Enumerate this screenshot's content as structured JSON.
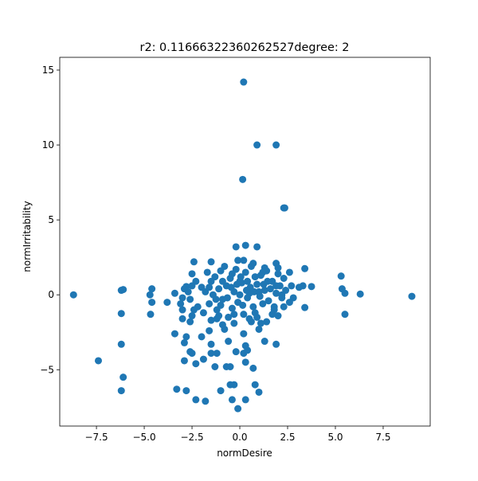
{
  "chart_data": {
    "type": "scatter",
    "title": "r2: 0.11666322360262527degree: 2",
    "x_label": "normDesire",
    "y_label": "normIrritability",
    "color": "#1f77b4",
    "x": [
      -8.7,
      -7.4,
      -6.2,
      -6.1,
      -6.2,
      -6.2,
      -6.1,
      -6.2,
      0.2,
      0.9,
      1.9,
      0.15,
      2.3,
      2.35,
      9,
      6.3,
      5.3,
      5.35,
      5.5,
      5.5,
      3.4,
      3.4,
      3.75,
      3.3,
      -4.6,
      -4.7,
      -4.6,
      -3.8,
      -4.67,
      -3.4,
      -3.3,
      -2.8,
      -2.3,
      -1.8,
      -1,
      -0.5,
      -0.3,
      -0.4,
      -0.1,
      0.3,
      0.8,
      1,
      0.7,
      0.3,
      -1.3,
      -0.5,
      -0.7,
      -2.3,
      -1.9,
      -2.9,
      -2.6,
      -2.5,
      -1.2,
      -1.5,
      -0.2,
      0.2,
      0.4,
      1.3,
      1.9,
      0.3,
      -0.6,
      -1.5,
      -2.9,
      -2.8,
      -2,
      -1.6,
      -0.8,
      0.2,
      1,
      -2.6,
      -3,
      -0.3,
      0.6,
      1.4,
      -1.2,
      -3,
      -2.5,
      -3.4,
      -2.8,
      -2.5,
      -2.4,
      -1.5,
      -0.2,
      0.3,
      0.9,
      -0.1,
      0.2,
      0.7,
      1.9,
      2,
      1.3,
      2.6,
      3.1,
      2.8,
      2.2,
      2.3,
      1.8,
      2,
      -2,
      -1.8,
      -1.5,
      -1.3,
      -1.1,
      -0.9,
      -0.7,
      -0.5,
      -0.3,
      -0.1,
      0.1,
      0.3,
      0.5,
      0.7,
      0.9,
      1.1,
      1.3,
      1.5,
      1.7,
      1.9,
      2.1,
      2.3,
      -2.2,
      -1.9,
      -1.6,
      -1.4,
      -1.2,
      -1,
      -0.8,
      -0.6,
      -0.4,
      -0.2,
      0,
      0.2,
      0.4,
      0.6,
      0.8,
      1,
      1.2,
      1.4,
      1.6,
      1.8,
      2,
      2.4,
      -2.7,
      -2.6,
      -2.3,
      -1.7,
      -0.9,
      -0.45,
      0.05,
      0.15,
      0.55,
      1.05,
      1.45,
      1.25,
      -0.15,
      -0.65,
      0.35,
      0.75,
      -1.25,
      -2.9,
      -3,
      -3.1,
      2.7,
      2.6,
      -1.5,
      -0.9,
      0.5,
      1.1,
      -0.3,
      1.7,
      -1.1,
      0.9,
      -1.6,
      0,
      0.4,
      0.8,
      1.2,
      -0.4,
      -1,
      -2.4,
      -2.5,
      1.9,
      2.2
    ],
    "values": [
      0,
      -4.4,
      0.3,
      0.35,
      -1.25,
      -3.3,
      -5.5,
      -6.4,
      14.2,
      10,
      10,
      7.7,
      5.8,
      5.8,
      -0.1,
      0.05,
      1.25,
      0.4,
      0.1,
      -1.3,
      1.75,
      -0.85,
      0.55,
      0.6,
      0.4,
      0,
      -0.5,
      -0.5,
      -1.3,
      -2.6,
      -6.3,
      -6.4,
      -7,
      -7.1,
      -6.4,
      -6,
      -6,
      -7,
      -7.6,
      -7,
      -6,
      -6.5,
      -4.9,
      -4.5,
      -4.8,
      -4.8,
      -4.8,
      -4.6,
      -4.3,
      -4.4,
      -3.8,
      -3.9,
      -3.9,
      -3.9,
      -3.8,
      -3.9,
      -3.7,
      -3.1,
      -3.3,
      -3.4,
      -3.1,
      -3.3,
      -3.2,
      -2.8,
      -2.8,
      -2.4,
      -2.3,
      -2.6,
      -2.3,
      -1.8,
      -1.6,
      -1.9,
      -1.8,
      -1.8,
      -1.6,
      -1,
      -1.4,
      0.1,
      0.55,
      1.4,
      2.2,
      2.2,
      3.2,
      3.3,
      3.2,
      2.3,
      2.3,
      2.1,
      2.1,
      1.8,
      1.8,
      1.5,
      0.5,
      -0.2,
      -0.2,
      -0.8,
      -1,
      -1.4,
      0.5,
      0.2,
      0.9,
      1.2,
      0.4,
      -0.3,
      0.6,
      1.1,
      0.2,
      -0.5,
      0.8,
      1.5,
      0.1,
      -0.8,
      0.7,
      1.3,
      0.3,
      -0.4,
      0.9,
      0.1,
      0.6,
      1.1,
      -0.8,
      -1.2,
      -0.6,
      0,
      -1,
      1.6,
      1.9,
      -1.5,
      -0.9,
      1.7,
      0,
      -1.3,
      -0.2,
      1.9,
      -1.2,
      0.2,
      -0.6,
      1.6,
      0.4,
      -0.8,
      1.4,
      0.3,
      0.2,
      -0.3,
      0.9,
      1.5,
      0.9,
      0.5,
      1.2,
      -0.7,
      0.5,
      -0.1,
      0.9,
      0.7,
      0.7,
      -0.2,
      0.3,
      0.2,
      -0.3,
      0.4,
      -0.2,
      -0.6,
      0.6,
      -0.5,
      -1.7,
      -2,
      -1.6,
      -1.9,
      -1.3,
      -1.3,
      -1.4,
      -1.5,
      0.5,
      0.9,
      0.9,
      1.2,
      1.5,
      1.4,
      -0.7,
      -1,
      0.6,
      0.6,
      0
    ],
    "xlim": [
      -9.42,
      9.96
    ],
    "ylim": [
      -8.76,
      15.85
    ],
    "xticks": [
      {
        "value": -7.5,
        "label": "−7.5"
      },
      {
        "value": -5,
        "label": "−5.0"
      },
      {
        "value": -2.5,
        "label": "−2.5"
      },
      {
        "value": 0,
        "label": "0.0"
      },
      2.5,
      {
        "value": 5,
        "label": "5.0"
      },
      7.5
    ],
    "yticks": [
      {
        "value": -5,
        "label": "−5"
      },
      0,
      5,
      10,
      15
    ]
  }
}
